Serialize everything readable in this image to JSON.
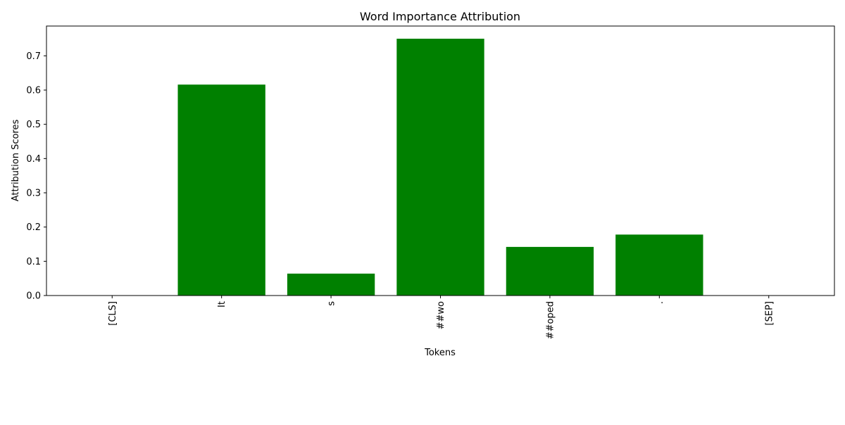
{
  "chart_data": {
    "type": "bar",
    "title": "Word Importance Attribution",
    "xlabel": "Tokens",
    "ylabel": "Attribution Scores",
    "categories": [
      "[CLS]",
      "It",
      "s",
      "##wo",
      "##oped",
      ".",
      "[SEP]"
    ],
    "values": [
      0.0,
      0.616,
      0.064,
      0.75,
      0.142,
      0.178,
      0.0
    ],
    "ylim": [
      0,
      0.787
    ],
    "yticks": [
      0.0,
      0.1,
      0.2,
      0.3,
      0.4,
      0.5,
      0.6,
      0.7
    ],
    "ytick_labels": [
      "0.0",
      "0.1",
      "0.2",
      "0.3",
      "0.4",
      "0.5",
      "0.6",
      "0.7"
    ],
    "bar_color": "#008000",
    "grid": false,
    "legend": "none"
  }
}
